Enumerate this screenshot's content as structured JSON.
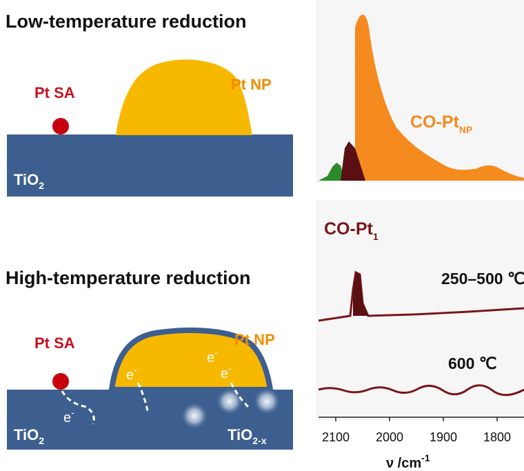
{
  "top": {
    "title": "Low-temperature reduction",
    "pt_sa": "Pt SA",
    "pt_np": "Pt NP",
    "support": {
      "main": "TiO",
      "sub": "2"
    },
    "spectrum_label": {
      "main": "CO-Pt",
      "sub": "NP"
    }
  },
  "bottom": {
    "title": "High-temperature reduction",
    "pt_sa": "Pt SA",
    "pt_np": "Pt NP",
    "support": {
      "main": "TiO",
      "sub": "2"
    },
    "defect_support": {
      "main": "TiO",
      "sub": "2-x"
    },
    "electrons": [
      {
        "main": "e",
        "sup": "-"
      },
      {
        "main": "e",
        "sup": "-"
      },
      {
        "main": "e",
        "sup": "-"
      },
      {
        "main": "e",
        "sup": "-"
      }
    ]
  },
  "spectra": {
    "label": {
      "main": "CO-Pt",
      "sub": "1"
    },
    "temperatures": [
      "250–500 ℃",
      "600 ℃"
    ],
    "x_ticks": [
      2100,
      2000,
      1900,
      1800
    ],
    "x_label": {
      "main": "ν /cm",
      "sup": "-1"
    }
  }
}
